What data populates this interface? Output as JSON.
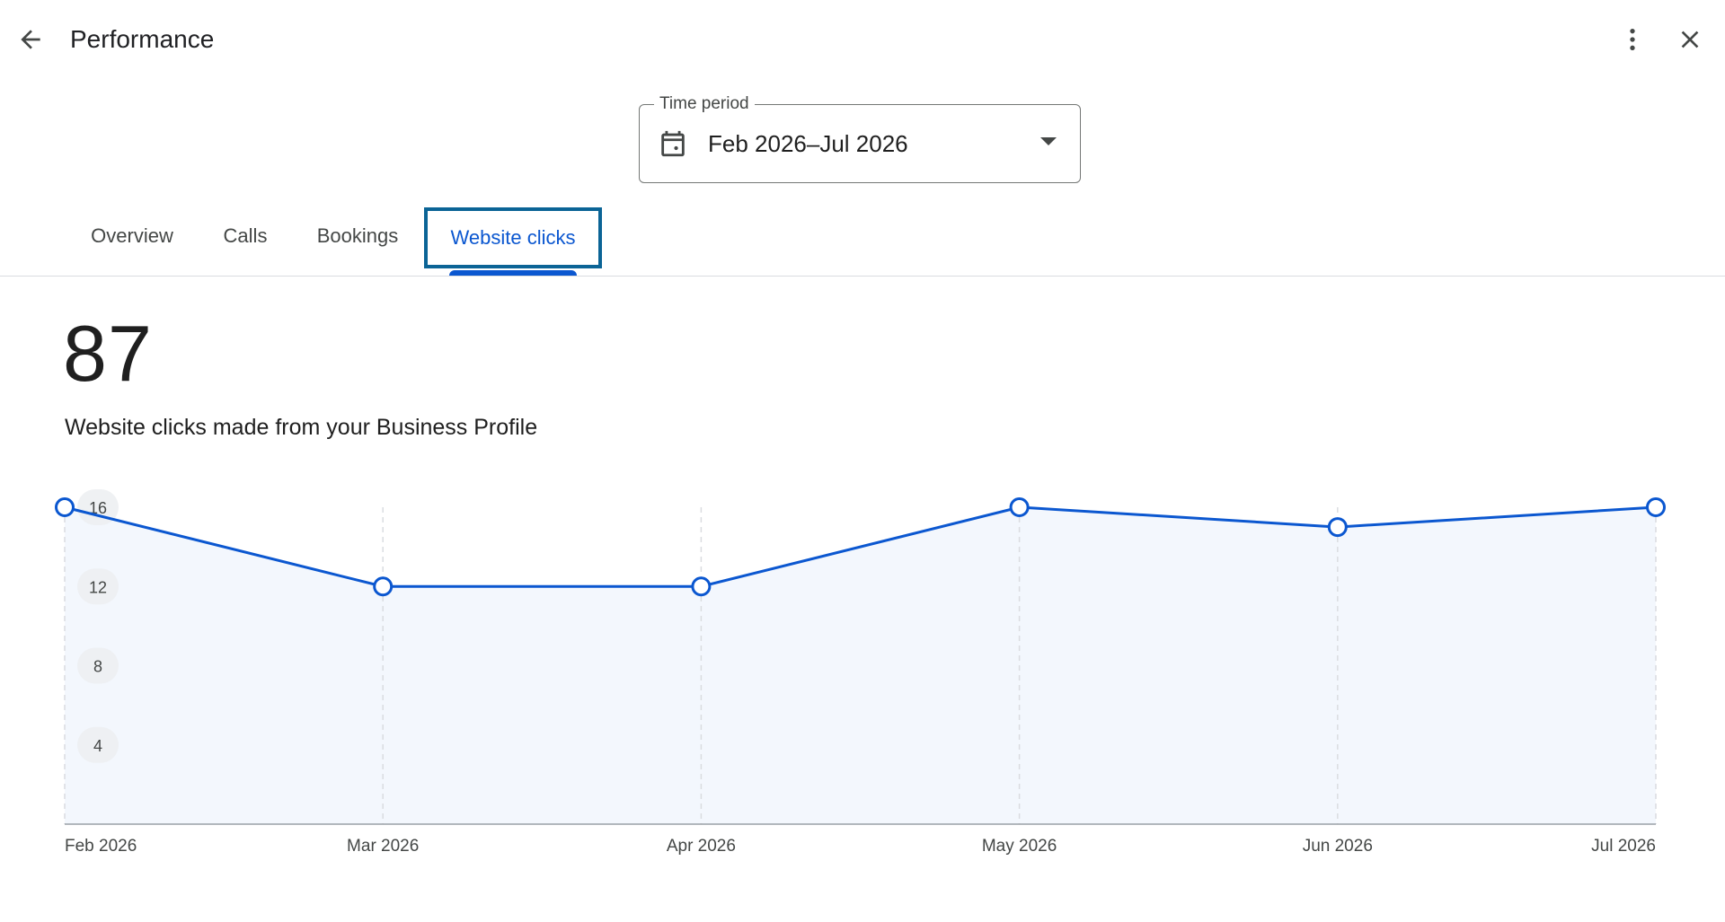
{
  "header": {
    "title": "Performance",
    "back_icon": "arrow-back-icon",
    "more_icon": "more-vert-icon",
    "close_icon": "close-icon"
  },
  "time_period": {
    "label": "Time period",
    "value": "Feb 2026–Jul 2026",
    "icon": "calendar-icon"
  },
  "tabs": [
    {
      "label": "Overview",
      "selected": false
    },
    {
      "label": "Calls",
      "selected": false
    },
    {
      "label": "Bookings",
      "selected": false
    },
    {
      "label": "Website clicks",
      "selected": true
    }
  ],
  "metric": {
    "value": "87",
    "label": "Website clicks made from your Business Profile"
  },
  "colors": {
    "accent": "#0b57d0",
    "area_fill": "#f3f7fd",
    "focus_outline": "#0b6496"
  },
  "chart_data": {
    "type": "area",
    "categories": [
      "Feb 2026",
      "Mar 2026",
      "Apr 2026",
      "May 2026",
      "Jun 2026",
      "Jul 2026"
    ],
    "values": [
      16,
      12,
      12,
      16,
      15,
      16
    ],
    "yticks": [
      "16",
      "12",
      "8",
      "4"
    ],
    "ylim": [
      0,
      16
    ],
    "grid": "vertical dashed",
    "title": "",
    "xlabel": "",
    "ylabel": ""
  }
}
